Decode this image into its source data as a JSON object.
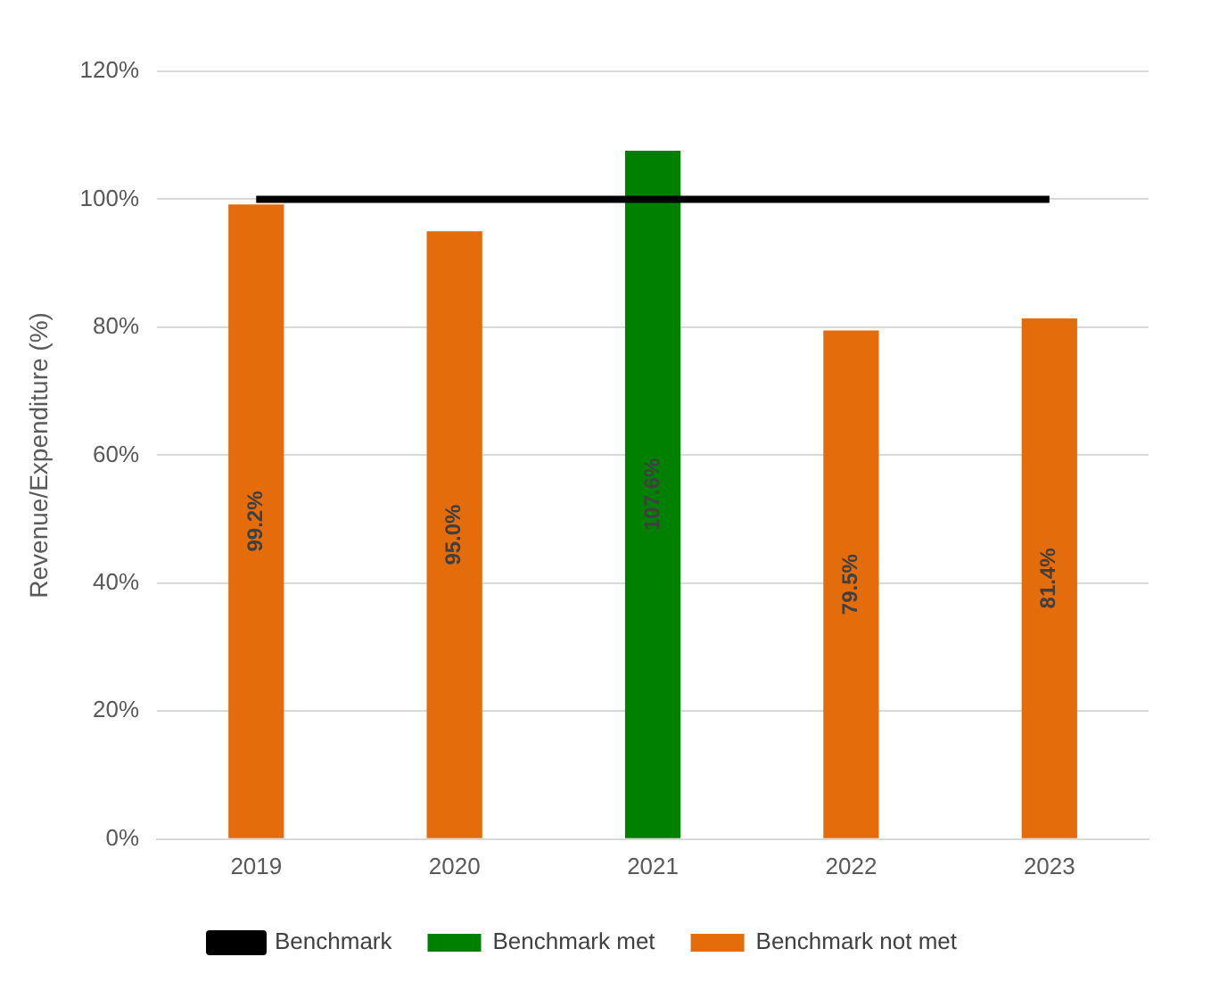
{
  "chart_data": {
    "type": "bar",
    "ylabel": "Revenue/Expenditure (%)",
    "categories": [
      "2019",
      "2020",
      "2021",
      "2022",
      "2023"
    ],
    "series": [
      {
        "name": "Benchmark met",
        "color": "#008000",
        "values": [
          null,
          null,
          107.6,
          null,
          null
        ],
        "value_labels": [
          null,
          null,
          "107.6%",
          null,
          null
        ]
      },
      {
        "name": "Benchmark not met",
        "color": "#e46c0a",
        "values": [
          99.2,
          95.0,
          null,
          79.5,
          81.4
        ],
        "value_labels": [
          "99.2%",
          "95.0%",
          null,
          "79.5%",
          "81.4%"
        ]
      },
      {
        "name": "Benchmark",
        "type": "line",
        "color": "#000000",
        "values": [
          100,
          100,
          100,
          100,
          100
        ]
      }
    ],
    "ylim": [
      0,
      120
    ],
    "yticks": [
      {
        "value": 0,
        "label": "0%"
      },
      {
        "value": 20,
        "label": "20%"
      },
      {
        "value": 40,
        "label": "40%"
      },
      {
        "value": 60,
        "label": "60%"
      },
      {
        "value": 80,
        "label": "80%"
      },
      {
        "value": 100,
        "label": "100%"
      },
      {
        "value": 120,
        "label": "120%"
      }
    ],
    "grid": "y",
    "legend": "bottom",
    "marker": "none",
    "line_style": "solid"
  }
}
